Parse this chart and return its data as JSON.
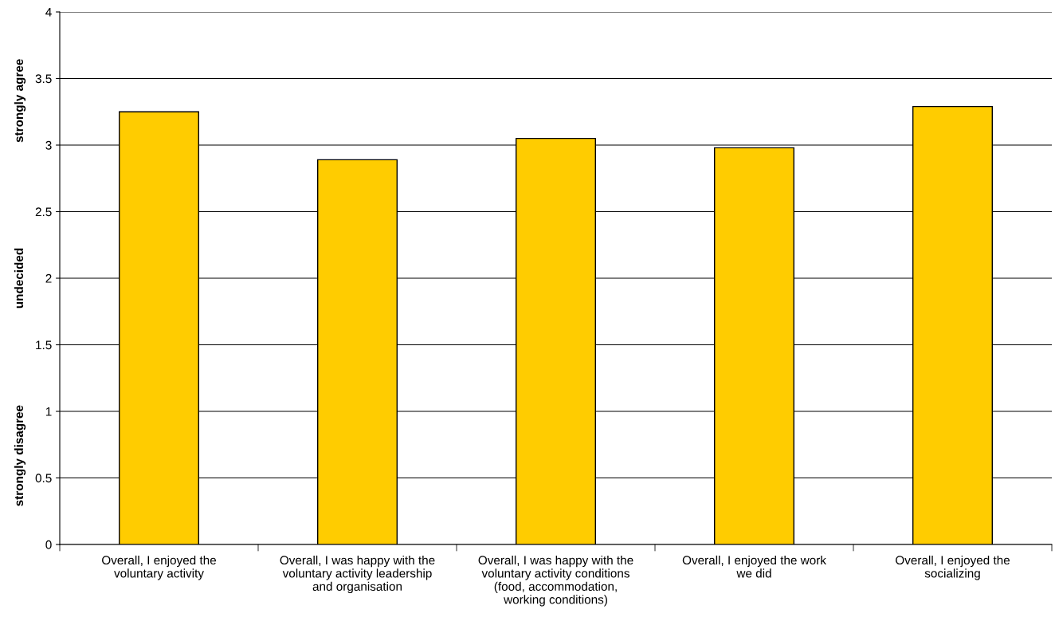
{
  "chart_data": {
    "type": "bar",
    "categories": [
      "Overall, I enjoyed the\nvoluntary activity",
      "Overall, I was happy with the\nvoluntary activity leadership\nand organisation",
      "Overall, I was happy with the\nvoluntary activity conditions\n(food, accommodation,\nworking conditions)",
      "Overall, I enjoyed the work\nwe did",
      "Overall, I enjoyed the\nsocializing"
    ],
    "values": [
      3.25,
      2.89,
      3.05,
      2.98,
      3.29
    ],
    "color": "#ffcc00",
    "ylim": [
      0,
      4
    ],
    "yticks": [
      0,
      0.5,
      1,
      1.5,
      2,
      2.5,
      3,
      3.5,
      4
    ],
    "grid": "y",
    "legend": false,
    "annotations": [
      "strongly disagree",
      "undecided",
      "strongly agree"
    ]
  }
}
